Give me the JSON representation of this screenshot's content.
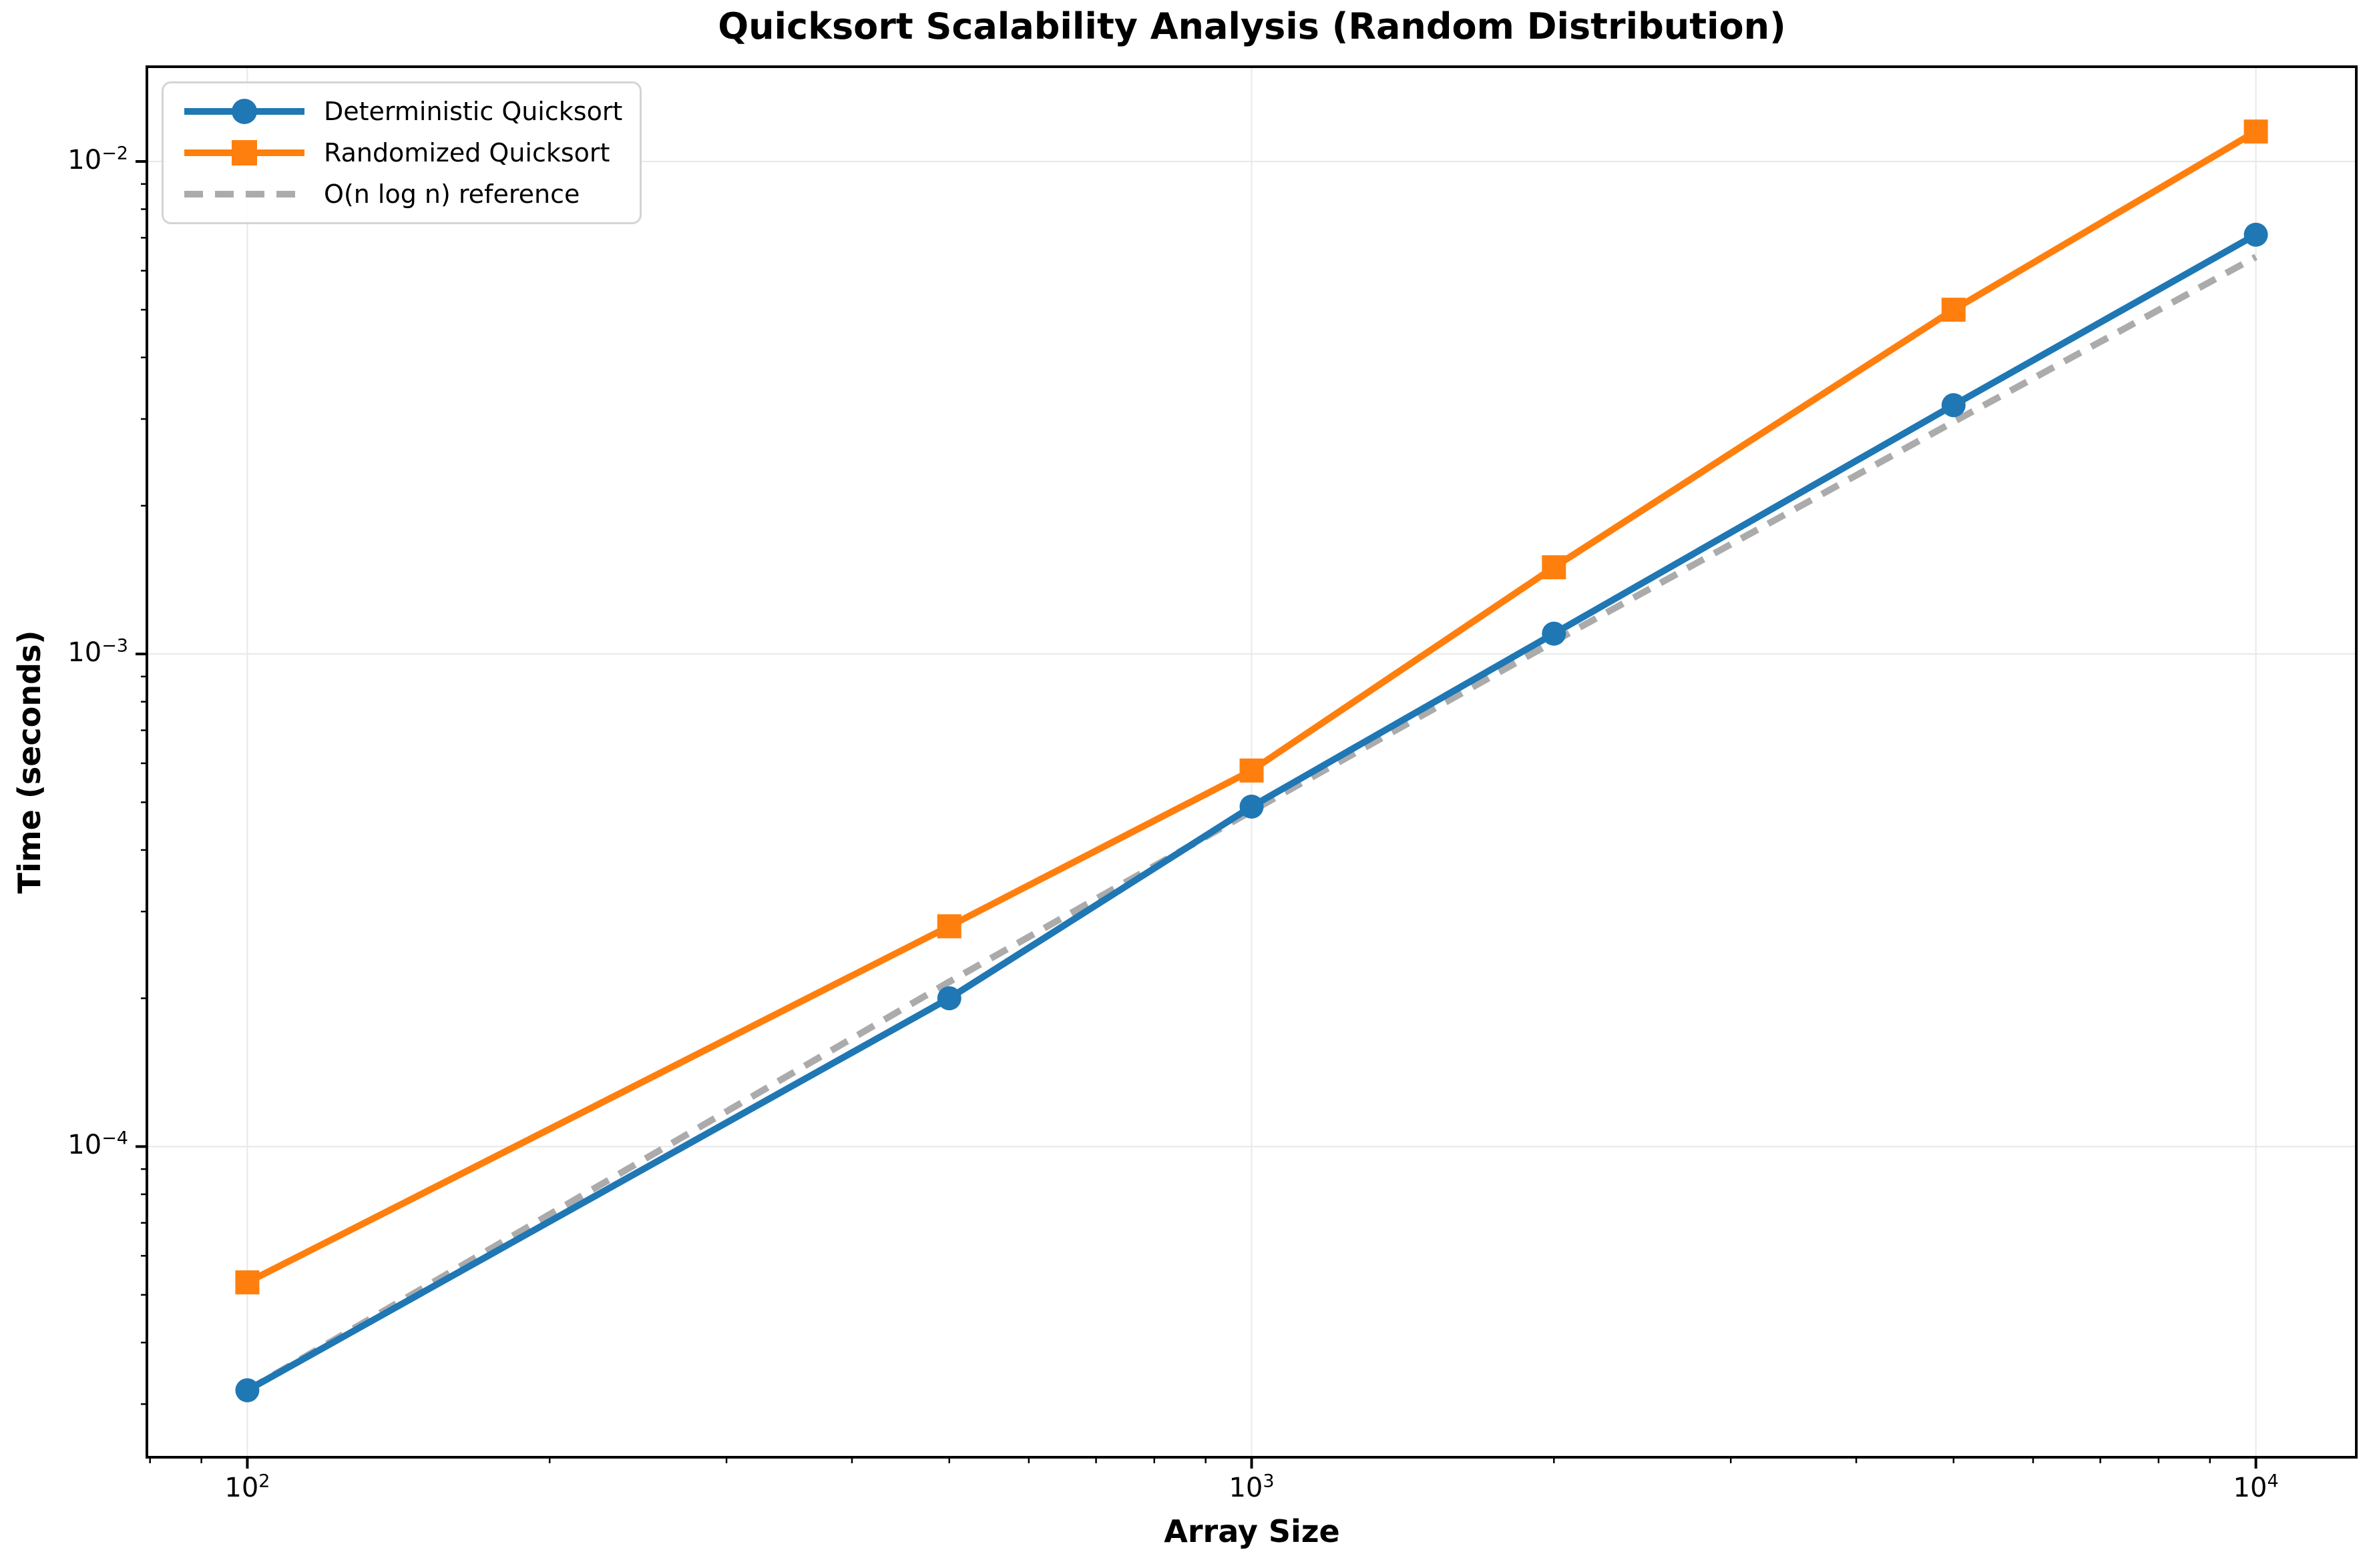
{
  "chart_data": {
    "type": "line",
    "title": "Quicksort Scalability Analysis (Random Distribution)",
    "xlabel": "Array Size",
    "ylabel": "Time (seconds)",
    "x_scale": "log",
    "y_scale": "log",
    "xlim": [
      79.43,
      12589
    ],
    "ylim": [
      2.34e-05,
      0.01557
    ],
    "grid": true,
    "legend_position": "upper left",
    "x": [
      100,
      500,
      1000,
      2000,
      5000,
      10000
    ],
    "series": [
      {
        "name": "Deterministic Quicksort",
        "color": "#1f77b4",
        "marker": "circle",
        "line_style": "solid",
        "values": [
          3.2e-05,
          0.0002,
          0.00049,
          0.0011,
          0.0032,
          0.0071
        ]
      },
      {
        "name": "Randomized Quicksort",
        "color": "#ff7f0e",
        "marker": "square",
        "line_style": "solid",
        "values": [
          5.3e-05,
          0.00028,
          0.00058,
          0.0015,
          0.005,
          0.0115
        ]
      },
      {
        "name": "O(n log n) reference",
        "color": "#ababab",
        "marker": "none",
        "line_style": "dashed",
        "values": [
          3.2e-05,
          0.000216,
          0.00048,
          0.00106,
          0.00296,
          0.0064
        ]
      }
    ],
    "x_ticks": [
      {
        "value": 100,
        "base": "10",
        "exp": "2"
      },
      {
        "value": 1000,
        "base": "10",
        "exp": "3"
      },
      {
        "value": 10000,
        "base": "10",
        "exp": "4"
      }
    ],
    "y_ticks": [
      {
        "value": 0.01,
        "base": "10",
        "exp": "−2"
      },
      {
        "value": 0.001,
        "base": "10",
        "exp": "−3"
      },
      {
        "value": 0.0001,
        "base": "10",
        "exp": "−4"
      }
    ],
    "grid_color": "#e8e8e8",
    "spine_color": "#000000"
  }
}
